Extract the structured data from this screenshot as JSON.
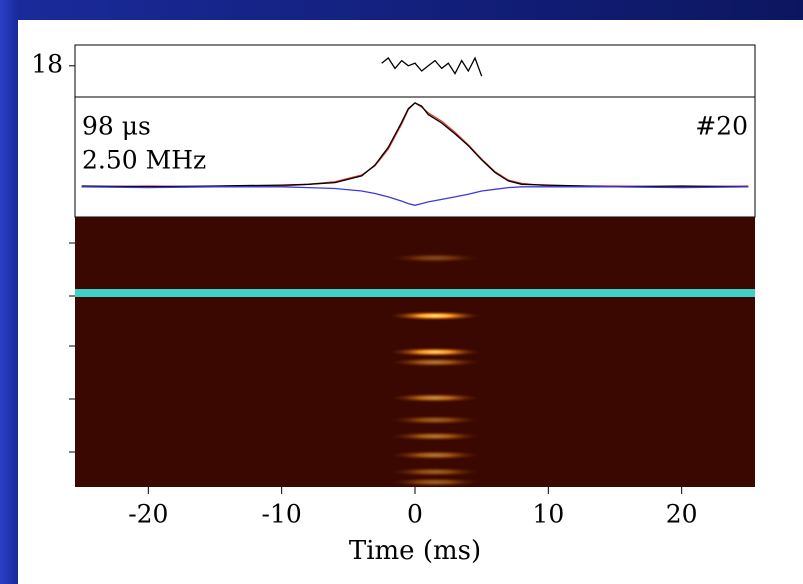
{
  "chart_data": [
    {
      "type": "line",
      "ylim": [
        16.8,
        18.8
      ],
      "yticks": [
        18
      ],
      "x": [
        -2.5,
        -2,
        -1.5,
        -1,
        -0.5,
        0,
        0.5,
        1,
        1.5,
        2,
        2.5,
        3,
        3.5,
        4,
        4.5,
        5
      ],
      "series": [
        {
          "color": "#000000",
          "values": [
            18.1,
            18.3,
            17.9,
            18.2,
            18.0,
            18.1,
            17.8,
            18.0,
            18.2,
            17.9,
            18.1,
            17.7,
            18.2,
            17.8,
            18.3,
            17.6
          ]
        }
      ]
    },
    {
      "type": "line",
      "ylim": [
        -0.36,
        1.07
      ],
      "annotations": [
        "98 μs",
        "2.50 MHz",
        "#20"
      ],
      "x": [
        -25,
        -20,
        -15,
        -10,
        -8,
        -6,
        -4,
        -3,
        -2,
        -1,
        -0.5,
        0,
        0.5,
        1,
        2,
        3,
        4,
        5,
        6,
        7,
        8,
        10,
        15,
        20,
        25
      ],
      "series": [
        {
          "color": "#e8312a",
          "values": [
            0,
            0.01,
            0,
            0.01,
            0.03,
            0.06,
            0.14,
            0.25,
            0.45,
            0.75,
            0.92,
            1.0,
            0.95,
            0.88,
            0.78,
            0.65,
            0.5,
            0.33,
            0.18,
            0.08,
            0.04,
            0.01,
            0.01,
            0,
            0.01
          ]
        },
        {
          "color": "#000000",
          "values": [
            0.01,
            0,
            0.01,
            0.02,
            0.03,
            0.05,
            0.13,
            0.26,
            0.47,
            0.77,
            0.93,
            1.0,
            0.96,
            0.86,
            0.76,
            0.63,
            0.49,
            0.32,
            0.17,
            0.07,
            0.03,
            0.02,
            0,
            0.01,
            0
          ]
        },
        {
          "color": "#3a3ae0",
          "values": [
            0,
            -0.01,
            0,
            0,
            -0.01,
            -0.02,
            -0.05,
            -0.08,
            -0.12,
            -0.17,
            -0.2,
            -0.22,
            -0.2,
            -0.18,
            -0.15,
            -0.12,
            -0.09,
            -0.05,
            -0.03,
            -0.01,
            0,
            0,
            0,
            -0.01,
            0
          ]
        }
      ]
    },
    {
      "type": "heatmap",
      "xlim": [
        -25.5,
        25.5
      ],
      "xticks": [
        -20,
        -10,
        0,
        10,
        20
      ],
      "xlabel": "Time (ms)",
      "ylim": [
        0,
        50
      ],
      "channels": [
        42.4,
        31.7,
        25,
        23.1,
        16.5,
        12.4,
        9.4,
        5.9,
        2.8,
        0.9
      ],
      "intensity": [
        0.3,
        1,
        0.9,
        0.5,
        0.6,
        0.4,
        0.5,
        0.5,
        0.4,
        0.4
      ]
    }
  ]
}
